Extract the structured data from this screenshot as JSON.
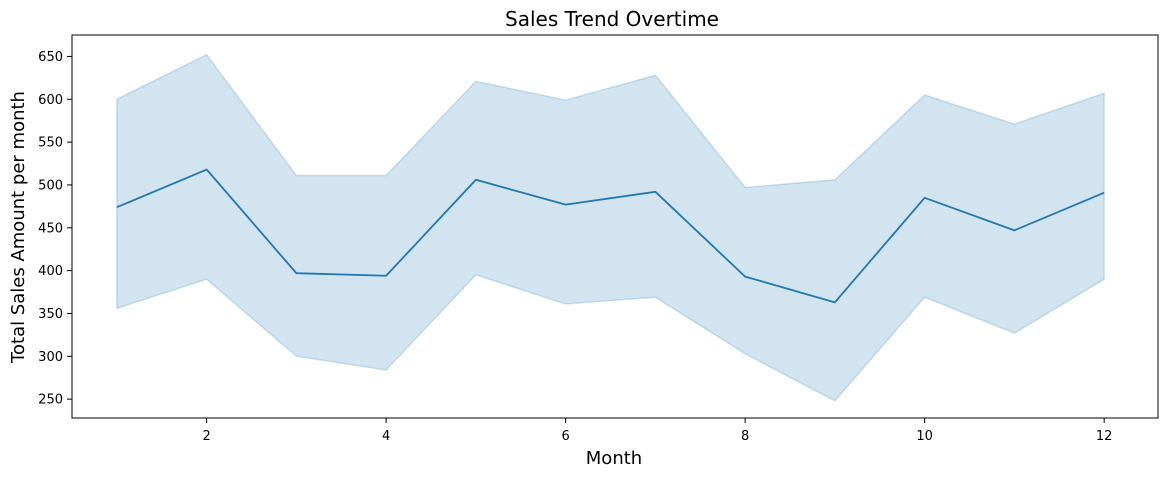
{
  "chart_data": {
    "type": "line",
    "title": "Sales Trend Overtime",
    "xlabel": "Month",
    "ylabel": "Total Sales Amount per month",
    "x": [
      1,
      2,
      3,
      4,
      5,
      6,
      7,
      8,
      9,
      10,
      11,
      12
    ],
    "xlim": [
      0.5,
      12.6
    ],
    "ylim": [
      228,
      675
    ],
    "xticks": [
      2,
      4,
      6,
      8,
      10,
      12
    ],
    "yticks": [
      250,
      300,
      350,
      400,
      450,
      500,
      550,
      600,
      650
    ],
    "grid": false,
    "series": [
      {
        "values": [
          474,
          518,
          397,
          394,
          506,
          477,
          492,
          393,
          363,
          485,
          447,
          491
        ],
        "ci_lower": [
          356,
          390,
          300,
          284,
          395,
          361,
          369,
          303,
          248,
          369,
          327,
          390
        ],
        "ci_upper": [
          600,
          652,
          511,
          511,
          621,
          599,
          628,
          497,
          506,
          605,
          571,
          607
        ],
        "color": "#1f77b4"
      }
    ]
  }
}
